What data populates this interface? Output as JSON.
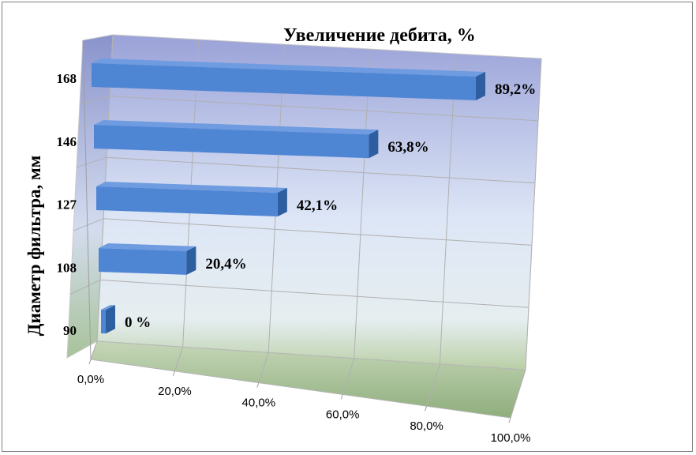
{
  "chart_data": {
    "type": "bar",
    "orientation": "horizontal",
    "style": "3d",
    "title": "Увеличение дебита, %",
    "ylabel": "Диаметр фильтра, мм",
    "xlabel": "",
    "categories": [
      "90",
      "108",
      "127",
      "146",
      "168"
    ],
    "values": [
      0,
      20.4,
      42.1,
      63.8,
      89.2
    ],
    "data_labels": [
      "0 %",
      "20,4%",
      "42,1%",
      "63,8%",
      "89,2%"
    ],
    "x_ticks": [
      "0,0%",
      "20,0%",
      "40,0%",
      "60,0%",
      "80,0%",
      "100,0%"
    ],
    "xlim": [
      0,
      100
    ],
    "grid": true,
    "legend": "none",
    "colors": {
      "bar_front": "#4f86d4",
      "bar_top": "#6f9be0",
      "bar_side": "#2d5e9f",
      "wall_top": "#9aa2d8",
      "wall_bottom": "#e9f1f8",
      "floor": "#7ea36a"
    }
  }
}
